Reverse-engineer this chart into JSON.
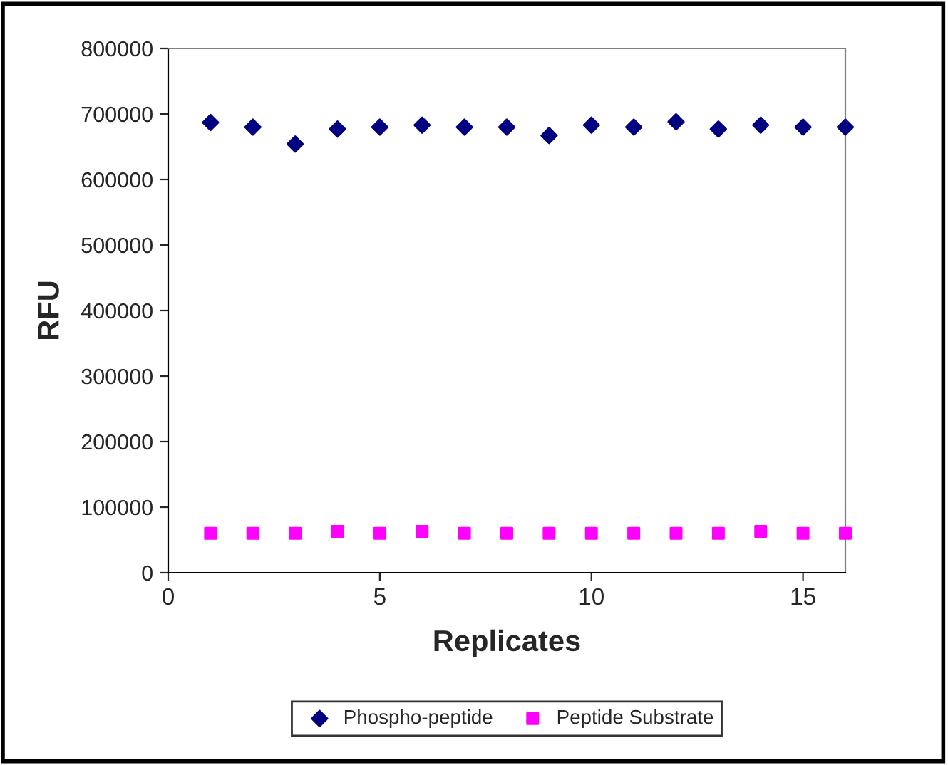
{
  "chart_data": {
    "type": "scatter",
    "xlabel": "Replicates",
    "ylabel": "RFU",
    "x": [
      1,
      2,
      3,
      4,
      5,
      6,
      7,
      8,
      9,
      10,
      11,
      12,
      13,
      14,
      15,
      16
    ],
    "series": [
      {
        "name": "Phospho-peptide",
        "color": "#000080",
        "marker": "diamond",
        "values": [
          687000,
          680000,
          654000,
          677000,
          680000,
          683000,
          680000,
          680000,
          667000,
          683000,
          680000,
          688000,
          677000,
          683000,
          680000,
          680000
        ]
      },
      {
        "name": "Peptide Substrate",
        "color": "#ff00ff",
        "marker": "square",
        "values": [
          60000,
          60000,
          60000,
          63000,
          60000,
          63000,
          60000,
          60000,
          60000,
          60000,
          60000,
          60000,
          60000,
          63000,
          60000,
          60000
        ]
      }
    ],
    "xlim": [
      0,
      16
    ],
    "xticks": [
      0,
      5,
      10,
      15
    ],
    "ylim": [
      0,
      800000
    ],
    "yticks": [
      0,
      100000,
      200000,
      300000,
      400000,
      500000,
      600000,
      700000,
      800000
    ],
    "grid": false,
    "legend": "bottom"
  }
}
